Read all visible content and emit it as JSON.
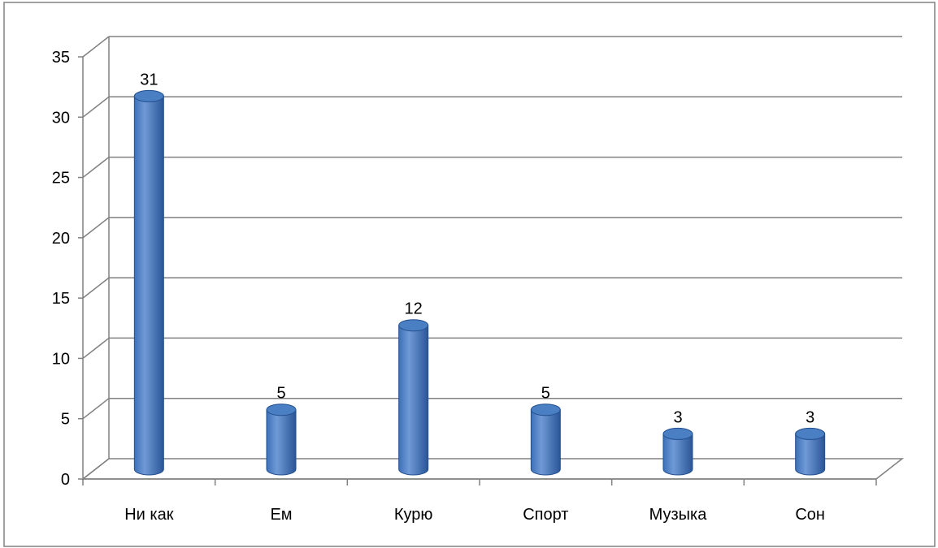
{
  "chart_data": {
    "type": "bar",
    "categories": [
      "Ни как",
      "Ем",
      "Курю",
      "Спорт",
      "Музыка",
      "Сон"
    ],
    "values": [
      31,
      5,
      12,
      5,
      3,
      3
    ],
    "data_labels": [
      "31",
      "5",
      "12",
      "5",
      "3",
      "3"
    ],
    "ylim": [
      0,
      35
    ],
    "yticks": [
      0,
      5,
      10,
      15,
      20,
      25,
      30,
      35
    ],
    "grid": true,
    "bar_color": "#3d6fb8",
    "bar_highlight": "#6f9ad6",
    "bar_top_color": "#4a7fc4",
    "grid_color": "#808080",
    "style": "3d-cylinder"
  }
}
